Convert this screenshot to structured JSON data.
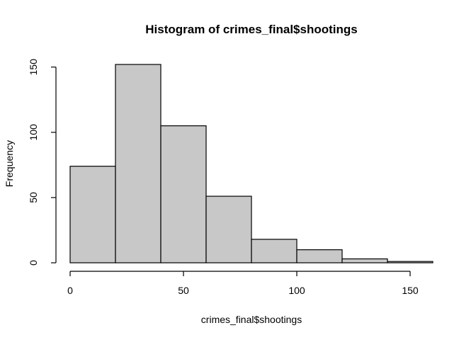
{
  "chart_data": {
    "type": "bar",
    "subtype": "histogram",
    "title": "Histogram of crimes_final$shootings",
    "xlabel": "crimes_final$shootings",
    "ylabel": "Frequency",
    "bins": [
      {
        "from": 0,
        "to": 20,
        "count": 74
      },
      {
        "from": 20,
        "to": 40,
        "count": 152
      },
      {
        "from": 40,
        "to": 60,
        "count": 105
      },
      {
        "from": 60,
        "to": 80,
        "count": 51
      },
      {
        "from": 80,
        "to": 100,
        "count": 18
      },
      {
        "from": 100,
        "to": 120,
        "count": 10
      },
      {
        "from": 120,
        "to": 140,
        "count": 3
      },
      {
        "from": 140,
        "to": 160,
        "count": 1
      }
    ],
    "xlim": [
      0,
      160
    ],
    "ylim": [
      0,
      152
    ],
    "x_ticks": [
      0,
      50,
      100,
      150
    ],
    "y_ticks": [
      0,
      50,
      100,
      150
    ],
    "bar_fill": "#c8c8c8",
    "bar_stroke": "#000000",
    "grid": false,
    "legend": false
  }
}
